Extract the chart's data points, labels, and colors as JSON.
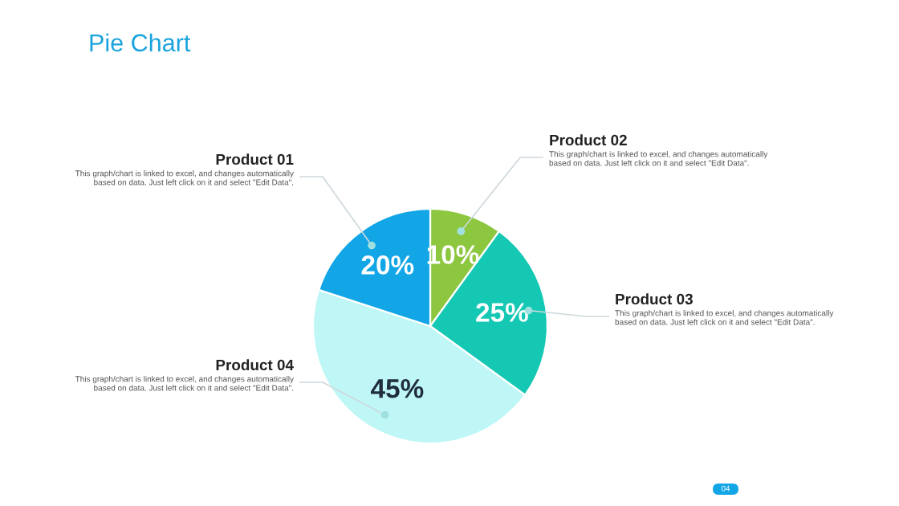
{
  "chart_data": {
    "type": "pie",
    "title": "Pie Chart",
    "categories": [
      "Product 02",
      "Product 03",
      "Product 04",
      "Product 01"
    ],
    "values": [
      10,
      25,
      45,
      20
    ],
    "value_labels": [
      "10%",
      "25%",
      "45%",
      "20%"
    ],
    "colors": [
      "#8dc63f",
      "#14c8b4",
      "#bff6f6",
      "#12a6e6"
    ],
    "annotations": [
      "This graph/chart is linked to excel, and changes automatically based on data. Just left click on it and select \"Edit Data\".",
      "This graph/chart is linked to excel, and changes automatically based on data. Just left click on it and select \"Edit Data\".",
      "This graph/chart is linked to excel, and changes automatically based on data. Just left click on it and select \"Edit Data\".",
      "This graph/chart is linked to excel, and changes automatically based on data. Just left click on it and select \"Edit Data\".",
      "04"
    ]
  }
}
